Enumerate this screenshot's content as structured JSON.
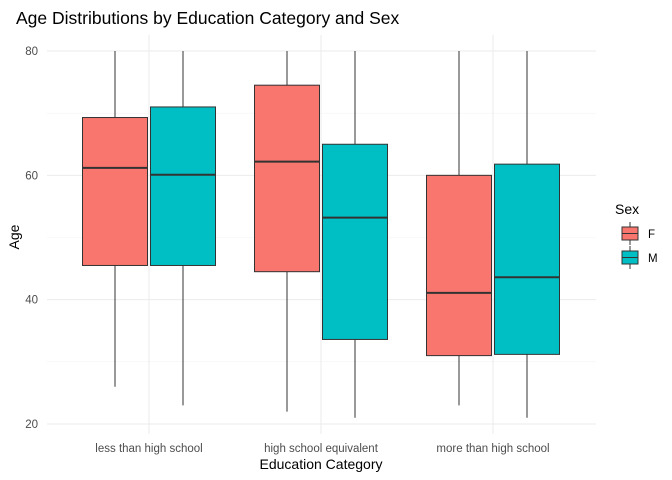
{
  "chart_data": {
    "type": "boxplot",
    "title": "Age Distributions by Education Category and Sex",
    "xlabel": "Education Category",
    "ylabel": "Age",
    "ylim": [
      20,
      80
    ],
    "yticks": [
      20,
      40,
      60,
      80
    ],
    "grid": true,
    "legend": {
      "title": "Sex",
      "position": "right",
      "entries": [
        "F",
        "M"
      ]
    },
    "categories": [
      "less than high school",
      "high school equivalent",
      "more than high school"
    ],
    "series": [
      {
        "name": "F",
        "color": "#F8766D",
        "boxes": [
          {
            "min": 26,
            "q1": 45.5,
            "median": 61.2,
            "q3": 69.3,
            "max": 80
          },
          {
            "min": 22,
            "q1": 44.5,
            "median": 62.2,
            "q3": 74.5,
            "max": 80
          },
          {
            "min": 23,
            "q1": 31.0,
            "median": 41.1,
            "q3": 60.0,
            "max": 80
          }
        ]
      },
      {
        "name": "M",
        "color": "#00BFC4",
        "boxes": [
          {
            "min": 23,
            "q1": 45.5,
            "median": 60.1,
            "q3": 71.0,
            "max": 80
          },
          {
            "min": 21,
            "q1": 33.6,
            "median": 53.2,
            "q3": 65.0,
            "max": 80
          },
          {
            "min": 21,
            "q1": 31.2,
            "median": 43.6,
            "q3": 61.8,
            "max": 80
          }
        ]
      }
    ]
  }
}
